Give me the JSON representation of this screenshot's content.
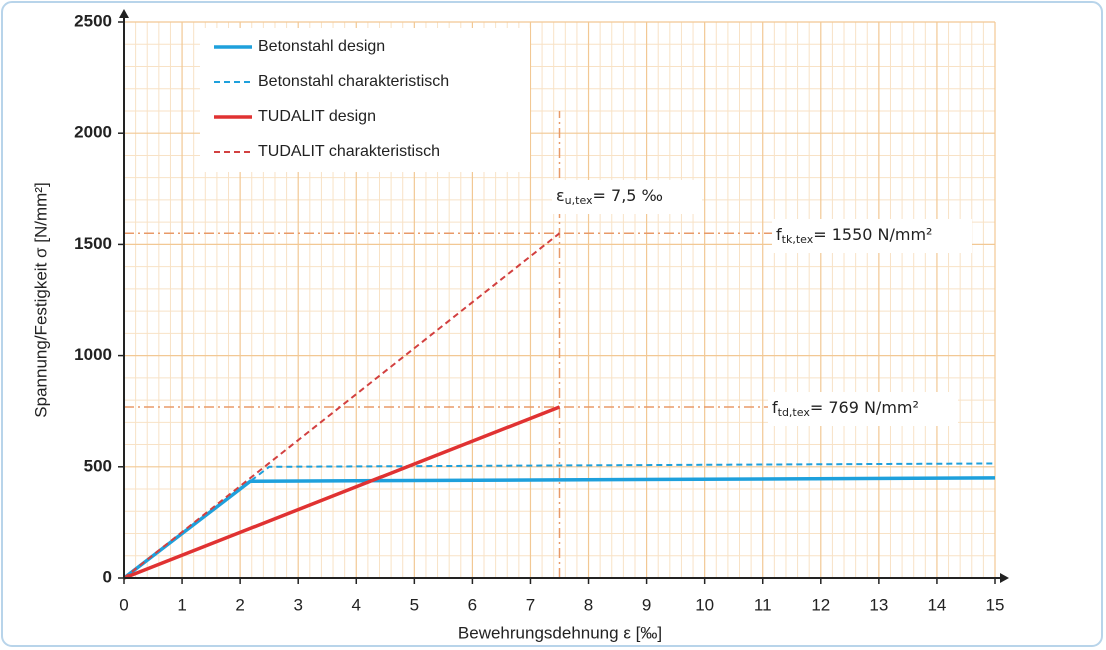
{
  "chart_data": {
    "type": "line",
    "x_label": "Bewehrungsdehnung ε [‰]",
    "y_label": "Spannung/Festigkeit σ [N/mm²]",
    "xlim": [
      0,
      15
    ],
    "ylim": [
      0,
      2500
    ],
    "xticks": [
      0,
      1,
      2,
      3,
      4,
      5,
      6,
      7,
      8,
      9,
      10,
      11,
      12,
      13,
      14,
      15
    ],
    "yticks": [
      0,
      500,
      1000,
      1500,
      2000,
      2500
    ],
    "grid": true,
    "minor_grid": true,
    "legend": "upper left",
    "series": [
      {
        "name": "Betonstahl design",
        "color": "#1ea0dc",
        "dash": false,
        "x": [
          0,
          2.175,
          15
        ],
        "values": [
          0,
          435,
          450
        ]
      },
      {
        "name": "Betonstahl charakteristisch",
        "color": "#1ea0dc",
        "dash": true,
        "x": [
          0,
          2.5,
          15
        ],
        "values": [
          0,
          500,
          515
        ]
      },
      {
        "name": "TUDALIT design",
        "color": "#e03232",
        "dash": false,
        "x": [
          0,
          7.5
        ],
        "values": [
          0,
          769
        ]
      },
      {
        "name": "TUDALIT charakteristisch",
        "color": "#d24040",
        "dash": true,
        "x": [
          0,
          7.5
        ],
        "values": [
          0,
          1550
        ]
      }
    ],
    "reference_lines": [
      {
        "axis": "x",
        "value": 7.5,
        "from": 0,
        "to": 2100
      },
      {
        "axis": "y",
        "value": 1550,
        "from": 0,
        "to": 11.3
      },
      {
        "axis": "y",
        "value": 769,
        "from": 0,
        "to": 11.3
      }
    ],
    "reference_color": "#e89a68",
    "annotations": [
      {
        "symbol": "ε",
        "sub": "u,tex",
        "text": "= 7,5 ‰"
      },
      {
        "symbol": "f",
        "sub": "tk,tex",
        "text": "= 1550 N/mm²"
      },
      {
        "symbol": "f",
        "sub": "td,tex",
        "text": "= 769 N/mm²"
      }
    ]
  }
}
